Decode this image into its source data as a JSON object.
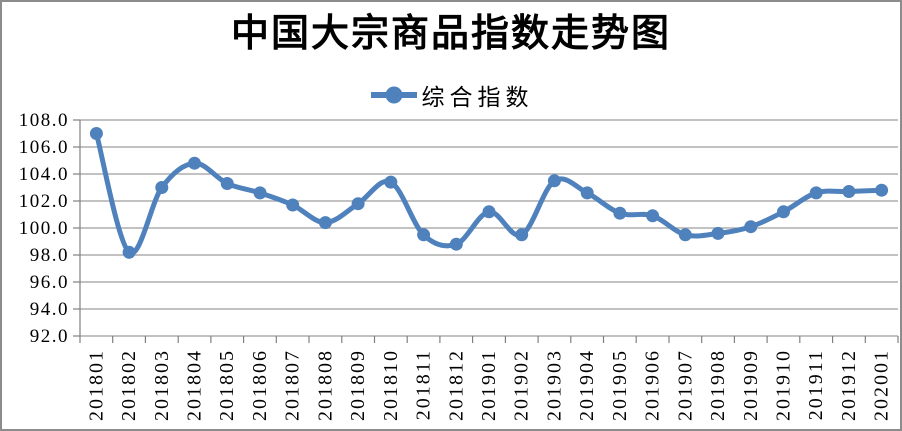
{
  "chart": {
    "accent_color": "#4F81BD",
    "grid_color": "#9E9E9E",
    "axis_color": "#808080",
    "border_color": "#8C8C8C",
    "text_color": "#000000",
    "background_color": "#FFFFFF"
  },
  "chart_data": {
    "type": "line",
    "title": "中国大宗商品指数走势图",
    "xlabel": "",
    "ylabel": "",
    "legend_position": "top",
    "grid": true,
    "smooth": true,
    "marker": "circle",
    "categories": [
      "201801",
      "201802",
      "201803",
      "201804",
      "201805",
      "201806",
      "201807",
      "201808",
      "201809",
      "201810",
      "201811",
      "201812",
      "201901",
      "201902",
      "201903",
      "201904",
      "201905",
      "201906",
      "201907",
      "201908",
      "201909",
      "201910",
      "201911",
      "201912",
      "202001"
    ],
    "series": [
      {
        "name": "综合指数",
        "values": [
          107.0,
          98.2,
          103.0,
          104.8,
          103.3,
          102.6,
          101.7,
          100.4,
          101.8,
          103.4,
          99.5,
          98.8,
          101.2,
          99.5,
          103.5,
          102.6,
          101.1,
          100.9,
          99.5,
          99.6,
          100.1,
          101.2,
          102.6,
          102.7,
          102.8
        ]
      }
    ],
    "ylim": [
      92.0,
      108.0
    ],
    "ytick_step": 2.0,
    "ytick_labels": [
      "92.0",
      "94.0",
      "96.0",
      "98.0",
      "100.0",
      "102.0",
      "104.0",
      "106.0",
      "108.0"
    ]
  }
}
